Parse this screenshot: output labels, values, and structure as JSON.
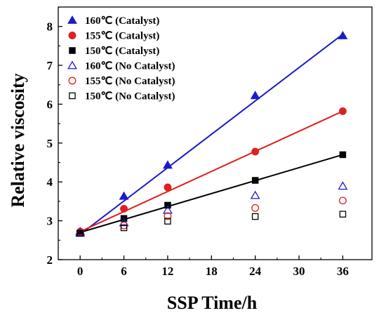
{
  "chart_data": {
    "type": "scatter",
    "xlabel": "SSP Time/h",
    "ylabel": "Relative viscosity",
    "xlim": [
      -3,
      40
    ],
    "ylim": [
      2,
      8.5
    ],
    "xticks": [
      0,
      6,
      12,
      18,
      24,
      30,
      36
    ],
    "yticks": [
      2,
      3,
      4,
      5,
      6,
      7,
      8
    ],
    "legend_position": "top-left",
    "grid": false,
    "series": [
      {
        "name": "160℃ (Catalyst)",
        "marker": "triangle",
        "filled": true,
        "color": "#1a1acc",
        "x": [
          0,
          6,
          12,
          24,
          36
        ],
        "y": [
          2.68,
          3.63,
          4.43,
          6.22,
          7.76
        ],
        "fit": {
          "x": [
            0,
            36
          ],
          "y": [
            2.65,
            7.8
          ]
        }
      },
      {
        "name": "155℃ (Catalyst)",
        "marker": "circle",
        "filled": true,
        "color": "#e02020",
        "x": [
          0,
          6,
          12,
          24,
          36
        ],
        "y": [
          2.72,
          3.31,
          3.86,
          4.78,
          5.82
        ],
        "fit": {
          "x": [
            0,
            36
          ],
          "y": [
            2.72,
            5.82
          ]
        }
      },
      {
        "name": "150℃ (Catalyst)",
        "marker": "square",
        "filled": true,
        "color": "#000000",
        "x": [
          0,
          6,
          12,
          24,
          36
        ],
        "y": [
          2.68,
          3.06,
          3.4,
          4.04,
          4.7
        ],
        "fit": {
          "x": [
            0,
            36
          ],
          "y": [
            2.7,
            4.7
          ]
        }
      },
      {
        "name": "160℃ (No Catalyst)",
        "marker": "triangle",
        "filled": false,
        "color": "#1a1acc",
        "x": [
          0,
          6,
          12,
          24,
          36
        ],
        "y": [
          2.72,
          2.95,
          3.27,
          3.65,
          3.89
        ]
      },
      {
        "name": "155℃ (No Catalyst)",
        "marker": "circle",
        "filled": false,
        "color": "#e02020",
        "x": [
          0,
          6,
          12,
          24,
          36
        ],
        "y": [
          2.7,
          2.88,
          3.12,
          3.33,
          3.52
        ]
      },
      {
        "name": "150℃ (No Catalyst)",
        "marker": "square",
        "filled": false,
        "color": "#000000",
        "x": [
          0,
          6,
          12,
          24,
          36
        ],
        "y": [
          2.68,
          2.82,
          2.99,
          3.11,
          3.17
        ]
      }
    ]
  }
}
